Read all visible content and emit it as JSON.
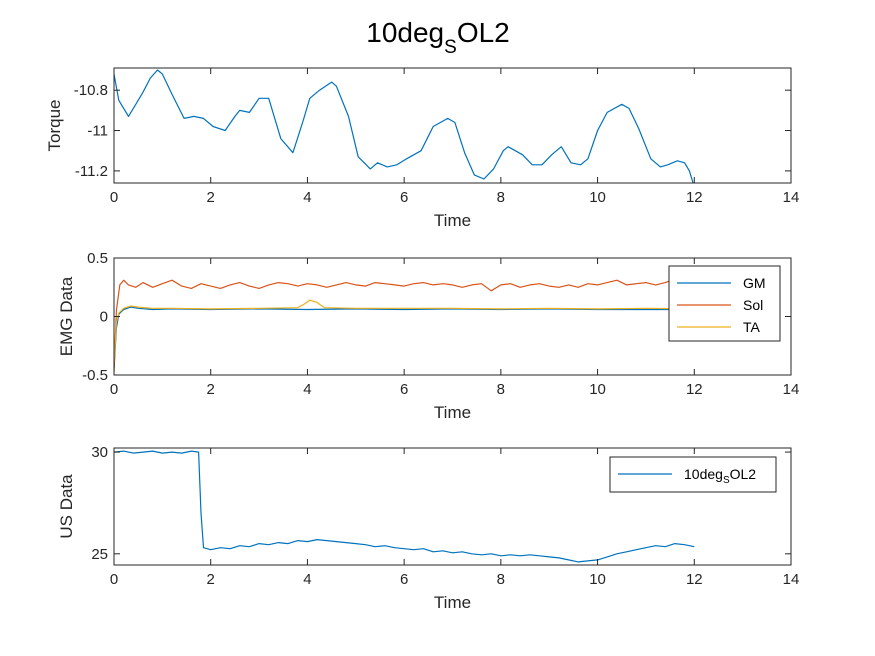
{
  "figure_title": {
    "main": "10deg",
    "sub": "S",
    "tail": "OL2"
  },
  "colors": {
    "blue": "#0072BD",
    "orange": "#D95319",
    "yellow": "#EDB120",
    "axis": "#262626"
  },
  "chart_data": [
    {
      "type": "line",
      "xlabel": "Time",
      "ylabel": "Torque",
      "xlim": [
        0,
        14
      ],
      "ylim": [
        -11.26,
        -10.69
      ],
      "xticks": [
        "0",
        "2",
        "4",
        "6",
        "8",
        "10",
        "12",
        "14"
      ],
      "yticks": [
        {
          "v": -10.8,
          "label": "-10.8"
        },
        {
          "v": -11,
          "label": "-11"
        },
        {
          "v": -11.2,
          "label": "-11.2"
        }
      ],
      "legend": null,
      "series": [
        {
          "color": "#0072BD",
          "x": [
            0,
            0.1,
            0.3,
            0.45,
            0.6,
            0.75,
            0.9,
            1.0,
            1.2,
            1.45,
            1.65,
            1.85,
            2.05,
            2.3,
            2.5,
            2.6,
            2.8,
            3.0,
            3.2,
            3.45,
            3.7,
            3.9,
            4.05,
            4.25,
            4.5,
            4.6,
            4.85,
            5.05,
            5.3,
            5.45,
            5.65,
            5.85,
            6.05,
            6.35,
            6.6,
            6.9,
            7.05,
            7.25,
            7.45,
            7.65,
            7.85,
            8.05,
            8.15,
            8.45,
            8.65,
            8.85,
            9.05,
            9.25,
            9.45,
            9.65,
            9.8,
            10.0,
            10.2,
            10.5,
            10.65,
            10.85,
            11.1,
            11.3,
            11.45,
            11.65,
            11.8,
            11.9,
            12.0
          ],
          "y": [
            -10.72,
            -10.85,
            -10.93,
            -10.87,
            -10.81,
            -10.74,
            -10.7,
            -10.72,
            -10.82,
            -10.94,
            -10.93,
            -10.94,
            -10.98,
            -11.0,
            -10.93,
            -10.9,
            -10.91,
            -10.84,
            -10.84,
            -11.04,
            -11.11,
            -10.96,
            -10.84,
            -10.8,
            -10.76,
            -10.78,
            -10.93,
            -11.13,
            -11.19,
            -11.16,
            -11.18,
            -11.17,
            -11.14,
            -11.1,
            -10.98,
            -10.94,
            -10.96,
            -11.11,
            -11.22,
            -11.24,
            -11.19,
            -11.1,
            -11.08,
            -11.12,
            -11.17,
            -11.17,
            -11.12,
            -11.08,
            -11.16,
            -11.17,
            -11.14,
            -11.0,
            -10.91,
            -10.87,
            -10.89,
            -10.99,
            -11.14,
            -11.18,
            -11.17,
            -11.15,
            -11.16,
            -11.2,
            -11.28
          ]
        }
      ]
    },
    {
      "type": "line",
      "xlabel": "Time",
      "ylabel": "EMG Data",
      "xlim": [
        0,
        14
      ],
      "ylim": [
        -0.5,
        0.5
      ],
      "xticks": [
        "0",
        "2",
        "4",
        "6",
        "8",
        "10",
        "12",
        "14"
      ],
      "yticks": [
        {
          "v": 0.5,
          "label": "0.5"
        },
        {
          "v": 0,
          "label": "0"
        },
        {
          "v": -0.5,
          "label": "-0.5"
        }
      ],
      "legend": {
        "location": "top-right",
        "entries": [
          "GM",
          "Sol",
          "TA"
        ]
      },
      "series": [
        {
          "name": "GM",
          "color": "#0072BD",
          "x": [
            0,
            0.05,
            0.1,
            0.2,
            0.35,
            0.5,
            0.8,
            1.2,
            2,
            3,
            4,
            5,
            6,
            7,
            8,
            9,
            10,
            11,
            12,
            13
          ],
          "y": [
            -0.45,
            -0.1,
            0.02,
            0.06,
            0.08,
            0.07,
            0.06,
            0.065,
            0.06,
            0.065,
            0.06,
            0.065,
            0.06,
            0.065,
            0.06,
            0.065,
            0.06,
            0.06,
            0.06,
            0.065
          ]
        },
        {
          "name": "Sol",
          "color": "#D95319",
          "x": [
            0,
            0.05,
            0.12,
            0.2,
            0.3,
            0.45,
            0.6,
            0.8,
            1.0,
            1.2,
            1.4,
            1.6,
            1.8,
            2.0,
            2.2,
            2.4,
            2.6,
            2.8,
            3.0,
            3.2,
            3.4,
            3.6,
            3.8,
            4.0,
            4.2,
            4.4,
            4.6,
            4.8,
            5.0,
            5.2,
            5.4,
            5.6,
            5.8,
            6.0,
            6.2,
            6.4,
            6.6,
            6.8,
            7.0,
            7.2,
            7.4,
            7.6,
            7.8,
            8.0,
            8.2,
            8.4,
            8.6,
            8.8,
            9.0,
            9.2,
            9.4,
            9.6,
            9.8,
            10.0,
            10.2,
            10.4,
            10.6,
            10.8,
            11.0,
            11.2,
            11.4,
            11.6,
            11.8,
            12.0,
            12.2,
            12.4,
            12.6,
            12.8,
            13.0
          ],
          "y": [
            -0.48,
            0.05,
            0.27,
            0.31,
            0.27,
            0.25,
            0.29,
            0.25,
            0.28,
            0.31,
            0.26,
            0.24,
            0.28,
            0.26,
            0.24,
            0.27,
            0.29,
            0.26,
            0.24,
            0.27,
            0.29,
            0.28,
            0.26,
            0.28,
            0.27,
            0.25,
            0.27,
            0.29,
            0.27,
            0.26,
            0.29,
            0.28,
            0.27,
            0.26,
            0.28,
            0.29,
            0.27,
            0.28,
            0.27,
            0.25,
            0.27,
            0.28,
            0.22,
            0.27,
            0.28,
            0.25,
            0.27,
            0.28,
            0.26,
            0.25,
            0.27,
            0.25,
            0.28,
            0.27,
            0.29,
            0.31,
            0.27,
            0.28,
            0.29,
            0.27,
            0.29,
            0.32,
            0.33,
            0.29,
            0.28,
            0.27,
            0.29,
            0.28,
            0.28
          ]
        },
        {
          "name": "TA",
          "color": "#EDB120",
          "x": [
            0,
            0.05,
            0.1,
            0.2,
            0.35,
            0.5,
            0.8,
            1.2,
            2,
            3,
            3.8,
            3.95,
            4.05,
            4.2,
            4.35,
            5,
            6,
            7,
            8,
            9,
            10,
            11,
            12,
            13
          ],
          "y": [
            -0.4,
            -0.05,
            0.03,
            0.07,
            0.09,
            0.08,
            0.07,
            0.07,
            0.065,
            0.07,
            0.075,
            0.11,
            0.14,
            0.12,
            0.075,
            0.07,
            0.07,
            0.07,
            0.065,
            0.07,
            0.065,
            0.07,
            0.065,
            0.07
          ]
        }
      ]
    },
    {
      "type": "line",
      "xlabel": "Time",
      "ylabel": "US Data",
      "xlim": [
        0,
        14
      ],
      "ylim": [
        24.45,
        30.2
      ],
      "xticks": [
        "0",
        "2",
        "4",
        "6",
        "8",
        "10",
        "12",
        "14"
      ],
      "yticks": [
        {
          "v": 30,
          "label": "30"
        },
        {
          "v": 25,
          "label": "25"
        }
      ],
      "legend": {
        "location": "top-right",
        "entries": [
          "10degSOL2"
        ]
      },
      "series": [
        {
          "name": "10degSOL2",
          "color": "#0072BD",
          "x": [
            0,
            0.2,
            0.4,
            0.6,
            0.8,
            1.0,
            1.2,
            1.4,
            1.6,
            1.75,
            1.8,
            1.85,
            2.0,
            2.2,
            2.4,
            2.6,
            2.8,
            3.0,
            3.2,
            3.4,
            3.6,
            3.8,
            4.0,
            4.2,
            4.4,
            4.6,
            4.8,
            5.0,
            5.2,
            5.4,
            5.6,
            5.8,
            6.0,
            6.2,
            6.4,
            6.6,
            6.8,
            7.0,
            7.2,
            7.4,
            7.6,
            7.8,
            8.0,
            8.2,
            8.4,
            8.6,
            8.8,
            9.0,
            9.2,
            9.4,
            9.6,
            9.8,
            10.0,
            10.2,
            10.4,
            10.6,
            10.8,
            11.0,
            11.2,
            11.4,
            11.6,
            11.8,
            12.0
          ],
          "y": [
            30.0,
            30.05,
            29.95,
            30.0,
            30.05,
            29.95,
            30.0,
            29.95,
            30.05,
            30.0,
            27.0,
            25.3,
            25.2,
            25.3,
            25.25,
            25.4,
            25.35,
            25.5,
            25.45,
            25.55,
            25.5,
            25.65,
            25.6,
            25.7,
            25.65,
            25.6,
            25.55,
            25.5,
            25.45,
            25.35,
            25.4,
            25.3,
            25.25,
            25.2,
            25.25,
            25.1,
            25.15,
            25.05,
            25.1,
            25.0,
            24.95,
            25.0,
            24.9,
            24.95,
            24.9,
            24.95,
            24.9,
            24.85,
            24.8,
            24.7,
            24.6,
            24.65,
            24.7,
            24.85,
            25.0,
            25.1,
            25.2,
            25.3,
            25.4,
            25.35,
            25.5,
            25.45,
            25.35
          ]
        }
      ]
    }
  ]
}
